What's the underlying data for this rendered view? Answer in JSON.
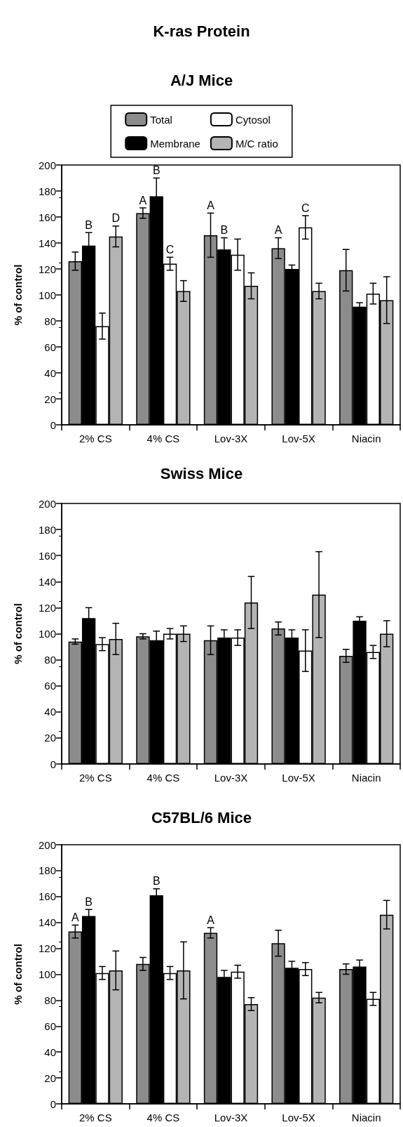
{
  "chart_data": [
    {
      "type": "bar",
      "title": "K-ras Protein",
      "subtitle": "A/J Mice",
      "ylabel": "% of control",
      "categories": [
        "2% CS",
        "4% CS",
        "Lov-3X",
        "Lov-5X",
        "Niacin"
      ],
      "ylim": [
        0,
        200
      ],
      "yticks": [
        0,
        20,
        40,
        60,
        80,
        100,
        120,
        140,
        160,
        180,
        200
      ],
      "grid": false,
      "legend": "top",
      "series": [
        {
          "name": "Total",
          "color": "#8c8c8c",
          "values": [
            126,
            163,
            146,
            136,
            119
          ],
          "errors": [
            7,
            4,
            17,
            8,
            16
          ]
        },
        {
          "name": "Membrane",
          "color": "#000000",
          "values": [
            138,
            176,
            135,
            120,
            91
          ],
          "errors": [
            10,
            14,
            9,
            3,
            3
          ]
        },
        {
          "name": "Cytosol",
          "color": "#ffffff",
          "values": [
            76,
            124,
            131,
            152,
            101
          ],
          "errors": [
            10,
            5,
            12,
            9,
            8
          ]
        },
        {
          "name": "M/C ratio",
          "color": "#b4b4b4",
          "values": [
            145,
            103,
            107,
            103,
            96
          ],
          "errors": [
            8,
            8,
            10,
            6,
            18
          ]
        }
      ],
      "annotations": [
        {
          "text": "B",
          "x": "2% CS",
          "y": 138
        },
        "D",
        {
          "text": "A",
          "x": "4% CS",
          "y": 163
        },
        {
          "text": "B",
          "x": "4% CS",
          "y": 176
        },
        {
          "text": "C",
          "x": "4% CS",
          "y": 124
        },
        "A",
        {
          "text": "B",
          "x": "Lov-3X",
          "y": 135
        },
        {
          "text": "A",
          "x": "Lov-5X",
          "y": 136
        },
        {
          "text": "C",
          "x": "Lov-5X",
          "y": 152
        }
      ]
    },
    {
      "type": "bar",
      "title": "Swiss Mice",
      "ylabel": "% of control",
      "categories": [
        "2% CS",
        "4% CS",
        "Lov-3X",
        "Lov-5X",
        "Niacin"
      ],
      "ylim": [
        0,
        200
      ],
      "yticks": [
        0,
        20,
        40,
        60,
        80,
        100,
        120,
        140,
        160,
        180,
        200
      ],
      "grid": false,
      "legend": false,
      "series": [
        {
          "color": "#8c8c8c",
          "values": [
            94,
            98,
            95,
            104,
            83
          ],
          "errors": [
            2,
            2,
            11,
            5,
            5
          ]
        },
        {
          "color": "#000000",
          "values": [
            112,
            95,
            97,
            97,
            110
          ],
          "errors": [
            8,
            7,
            6,
            6,
            3
          ]
        },
        {
          "color": "#ffffff",
          "values": [
            92,
            100,
            97,
            87,
            86
          ],
          "errors": [
            5,
            4,
            6,
            16,
            5
          ]
        },
        {
          "color": "#b4b4b4",
          "values": [
            96,
            100,
            124,
            130,
            100
          ],
          "errors": [
            12,
            6,
            20,
            33,
            10
          ]
        }
      ]
    },
    {
      "type": "bar",
      "title": "C57BL/6 Mice",
      "ylabel": "% of control",
      "categories": [
        "2% CS",
        "4% CS",
        "Lov-3X",
        "Lov-5X",
        "Niacin"
      ],
      "ylim": [
        0,
        200
      ],
      "yticks": [
        0,
        20,
        40,
        60,
        80,
        100,
        120,
        140,
        160,
        180,
        200
      ],
      "grid": false,
      "legend": false,
      "series": [
        {
          "color": "#8c8c8c",
          "values": [
            133,
            108,
            132,
            124,
            104
          ],
          "errors": [
            5,
            5,
            4,
            10,
            4
          ]
        },
        {
          "color": "#000000",
          "values": [
            145,
            161,
            98,
            105,
            106
          ],
          "errors": [
            5,
            5,
            5,
            5,
            5
          ]
        },
        {
          "color": "#ffffff",
          "values": [
            101,
            101,
            102,
            104,
            81
          ],
          "errors": [
            5,
            5,
            5,
            5,
            5
          ]
        },
        {
          "color": "#b4b4b4",
          "values": [
            103,
            103,
            77,
            82,
            146
          ],
          "errors": [
            15,
            22,
            5,
            4,
            11
          ]
        }
      ],
      "annotations": [
        {
          "text": "A",
          "x": "2% CS",
          "y": 133
        },
        {
          "text": "B",
          "x": "2% CS",
          "y": 145
        },
        {
          "text": "B",
          "x": "4% CS",
          "y": 161
        },
        "A"
      ]
    }
  ]
}
